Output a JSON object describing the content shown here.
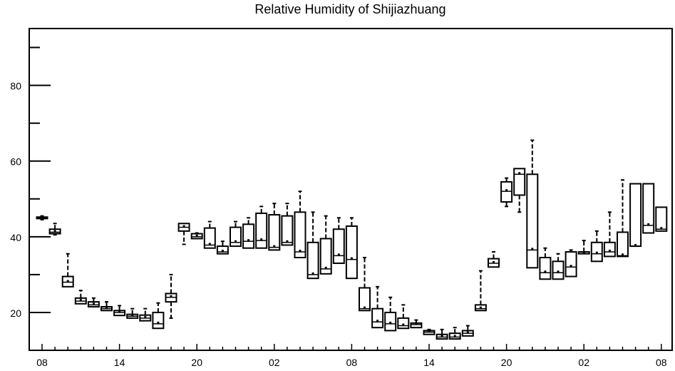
{
  "chart_data": {
    "type": "box",
    "title": "Relative Humidity of Shijiazhuang",
    "xlabel": "",
    "ylabel": "",
    "ylim": [
      10,
      95
    ],
    "yticks": [
      20,
      40,
      60,
      80
    ],
    "x_tick_labels": [
      "08",
      "14",
      "20",
      "02",
      "08",
      "14",
      "20",
      "02",
      "08"
    ],
    "x_tick_steps": [
      0,
      6,
      12,
      18,
      24,
      30,
      36,
      42,
      48
    ],
    "boxes": [
      {
        "step": 0,
        "whislo": 44.5,
        "q1": 44.8,
        "med": 45.0,
        "q3": 45.2,
        "whishi": 45.5
      },
      {
        "step": 1,
        "whislo": 40.5,
        "q1": 40.8,
        "med": 41.2,
        "q3": 42.0,
        "whishi": 43.5
      },
      {
        "step": 2,
        "whislo": 26.8,
        "q1": 26.8,
        "med": 28.0,
        "q3": 29.5,
        "whishi": 35.5
      },
      {
        "step": 3,
        "whislo": 22.3,
        "q1": 22.3,
        "med": 23.0,
        "q3": 23.8,
        "whishi": 25.8
      },
      {
        "step": 4,
        "whislo": 21.5,
        "q1": 21.5,
        "med": 22.0,
        "q3": 22.8,
        "whishi": 23.8
      },
      {
        "step": 5,
        "whislo": 20.5,
        "q1": 20.5,
        "med": 21.0,
        "q3": 21.5,
        "whishi": 22.8
      },
      {
        "step": 6,
        "whislo": 19.2,
        "q1": 19.2,
        "med": 20.0,
        "q3": 20.5,
        "whishi": 21.8
      },
      {
        "step": 7,
        "whislo": 18.5,
        "q1": 18.5,
        "med": 19.0,
        "q3": 19.5,
        "whishi": 21.0
      },
      {
        "step": 8,
        "whislo": 17.8,
        "q1": 17.8,
        "med": 18.5,
        "q3": 19.3,
        "whishi": 21.0
      },
      {
        "step": 9,
        "whislo": 15.8,
        "q1": 15.8,
        "med": 17.0,
        "q3": 20.0,
        "whishi": 22.5
      },
      {
        "step": 10,
        "whislo": 18.5,
        "q1": 22.8,
        "med": 24.0,
        "q3": 25.0,
        "whishi": 30.0
      },
      {
        "step": 11,
        "whislo": 38.0,
        "q1": 41.5,
        "med": 42.5,
        "q3": 43.5,
        "whishi": 43.5
      },
      {
        "step": 12,
        "whislo": 39.5,
        "q1": 39.5,
        "med": 40.0,
        "q3": 40.8,
        "whishi": 41.0
      },
      {
        "step": 13,
        "whislo": 37.0,
        "q1": 37.0,
        "med": 37.8,
        "q3": 42.3,
        "whishi": 44.0
      },
      {
        "step": 14,
        "whislo": 35.5,
        "q1": 35.5,
        "med": 36.0,
        "q3": 37.5,
        "whishi": 38.8
      },
      {
        "step": 15,
        "whislo": 37.5,
        "q1": 37.5,
        "med": 38.5,
        "q3": 42.5,
        "whishi": 44.0
      },
      {
        "step": 16,
        "whislo": 37.0,
        "q1": 37.0,
        "med": 38.8,
        "q3": 43.3,
        "whishi": 45.0
      },
      {
        "step": 17,
        "whislo": 37.0,
        "q1": 37.0,
        "med": 39.0,
        "q3": 46.2,
        "whishi": 48.0
      },
      {
        "step": 18,
        "whislo": 36.5,
        "q1": 36.5,
        "med": 37.2,
        "q3": 45.8,
        "whishi": 48.8
      },
      {
        "step": 19,
        "whislo": 37.8,
        "q1": 37.8,
        "med": 38.5,
        "q3": 45.5,
        "whishi": 48.8
      },
      {
        "step": 20,
        "whislo": 34.5,
        "q1": 34.5,
        "med": 36.0,
        "q3": 46.5,
        "whishi": 52.0
      },
      {
        "step": 21,
        "whislo": 29.0,
        "q1": 29.0,
        "med": 30.0,
        "q3": 38.5,
        "whishi": 46.5
      },
      {
        "step": 22,
        "whislo": 30.2,
        "q1": 30.2,
        "med": 31.5,
        "q3": 39.5,
        "whishi": 45.5
      },
      {
        "step": 23,
        "whislo": 33.0,
        "q1": 33.0,
        "med": 35.0,
        "q3": 42.0,
        "whishi": 45.0
      },
      {
        "step": 24,
        "whislo": 29.0,
        "q1": 29.0,
        "med": 34.0,
        "q3": 42.8,
        "whishi": 45.0
      },
      {
        "step": 25,
        "whislo": 20.5,
        "q1": 20.5,
        "med": 21.0,
        "q3": 26.5,
        "whishi": 34.5
      },
      {
        "step": 26,
        "whislo": 16.0,
        "q1": 16.0,
        "med": 17.5,
        "q3": 21.0,
        "whishi": 26.8
      },
      {
        "step": 27,
        "whislo": 15.2,
        "q1": 15.2,
        "med": 17.0,
        "q3": 20.0,
        "whishi": 24.0
      },
      {
        "step": 28,
        "whislo": 15.8,
        "q1": 15.8,
        "med": 16.5,
        "q3": 18.5,
        "whishi": 22.0
      },
      {
        "step": 29,
        "whislo": 16.0,
        "q1": 16.0,
        "med": 16.8,
        "q3": 17.2,
        "whishi": 18.0
      },
      {
        "step": 30,
        "whislo": 14.2,
        "q1": 14.2,
        "med": 14.8,
        "q3": 15.2,
        "whishi": 15.5
      },
      {
        "step": 31,
        "whislo": 13.0,
        "q1": 13.0,
        "med": 13.5,
        "q3": 14.2,
        "whishi": 15.5
      },
      {
        "step": 32,
        "whislo": 13.0,
        "q1": 13.0,
        "med": 13.5,
        "q3": 14.5,
        "whishi": 16.0
      },
      {
        "step": 33,
        "whislo": 13.8,
        "q1": 13.8,
        "med": 14.5,
        "q3": 15.2,
        "whishi": 16.5
      },
      {
        "step": 34,
        "whislo": 20.5,
        "q1": 20.5,
        "med": 21.0,
        "q3": 22.0,
        "whishi": 31.0
      },
      {
        "step": 35,
        "whislo": 32.0,
        "q1": 32.0,
        "med": 33.0,
        "q3": 34.2,
        "whishi": 36.0
      },
      {
        "step": 36,
        "whislo": 48.0,
        "q1": 49.2,
        "med": 52.0,
        "q3": 54.5,
        "whishi": 55.5
      },
      {
        "step": 37,
        "whislo": 46.5,
        "q1": 51.0,
        "med": 56.5,
        "q3": 58.0,
        "whishi": 58.0
      },
      {
        "step": 38,
        "whislo": 31.8,
        "q1": 31.8,
        "med": 36.5,
        "q3": 56.5,
        "whishi": 65.5
      },
      {
        "step": 39,
        "whislo": 28.8,
        "q1": 28.8,
        "med": 30.5,
        "q3": 34.5,
        "whishi": 37.0
      },
      {
        "step": 40,
        "whislo": 28.8,
        "q1": 28.8,
        "med": 30.5,
        "q3": 33.5,
        "whishi": 35.5
      },
      {
        "step": 41,
        "whislo": 29.5,
        "q1": 29.5,
        "med": 32.0,
        "q3": 36.0,
        "whishi": 36.5
      },
      {
        "step": 42,
        "whislo": 35.5,
        "q1": 35.5,
        "med": 35.5,
        "q3": 36.0,
        "whishi": 39.0
      },
      {
        "step": 43,
        "whislo": 33.5,
        "q1": 33.5,
        "med": 35.5,
        "q3": 38.5,
        "whishi": 41.5
      },
      {
        "step": 44,
        "whislo": 34.8,
        "q1": 34.8,
        "med": 36.0,
        "q3": 38.5,
        "whishi": 46.5
      },
      {
        "step": 45,
        "whislo": 34.8,
        "q1": 34.8,
        "med": 35.0,
        "q3": 41.2,
        "whishi": 55.0
      },
      {
        "step": 46,
        "whislo": 37.5,
        "q1": 37.5,
        "med": 37.5,
        "q3": 54.0,
        "whishi": 54.0
      },
      {
        "step": 47,
        "whislo": 41.0,
        "q1": 41.0,
        "med": 43.0,
        "q3": 54.0,
        "whishi": 54.0
      },
      {
        "step": 48,
        "whislo": 41.5,
        "q1": 41.5,
        "med": 42.0,
        "q3": 47.8,
        "whishi": 47.8
      }
    ]
  }
}
